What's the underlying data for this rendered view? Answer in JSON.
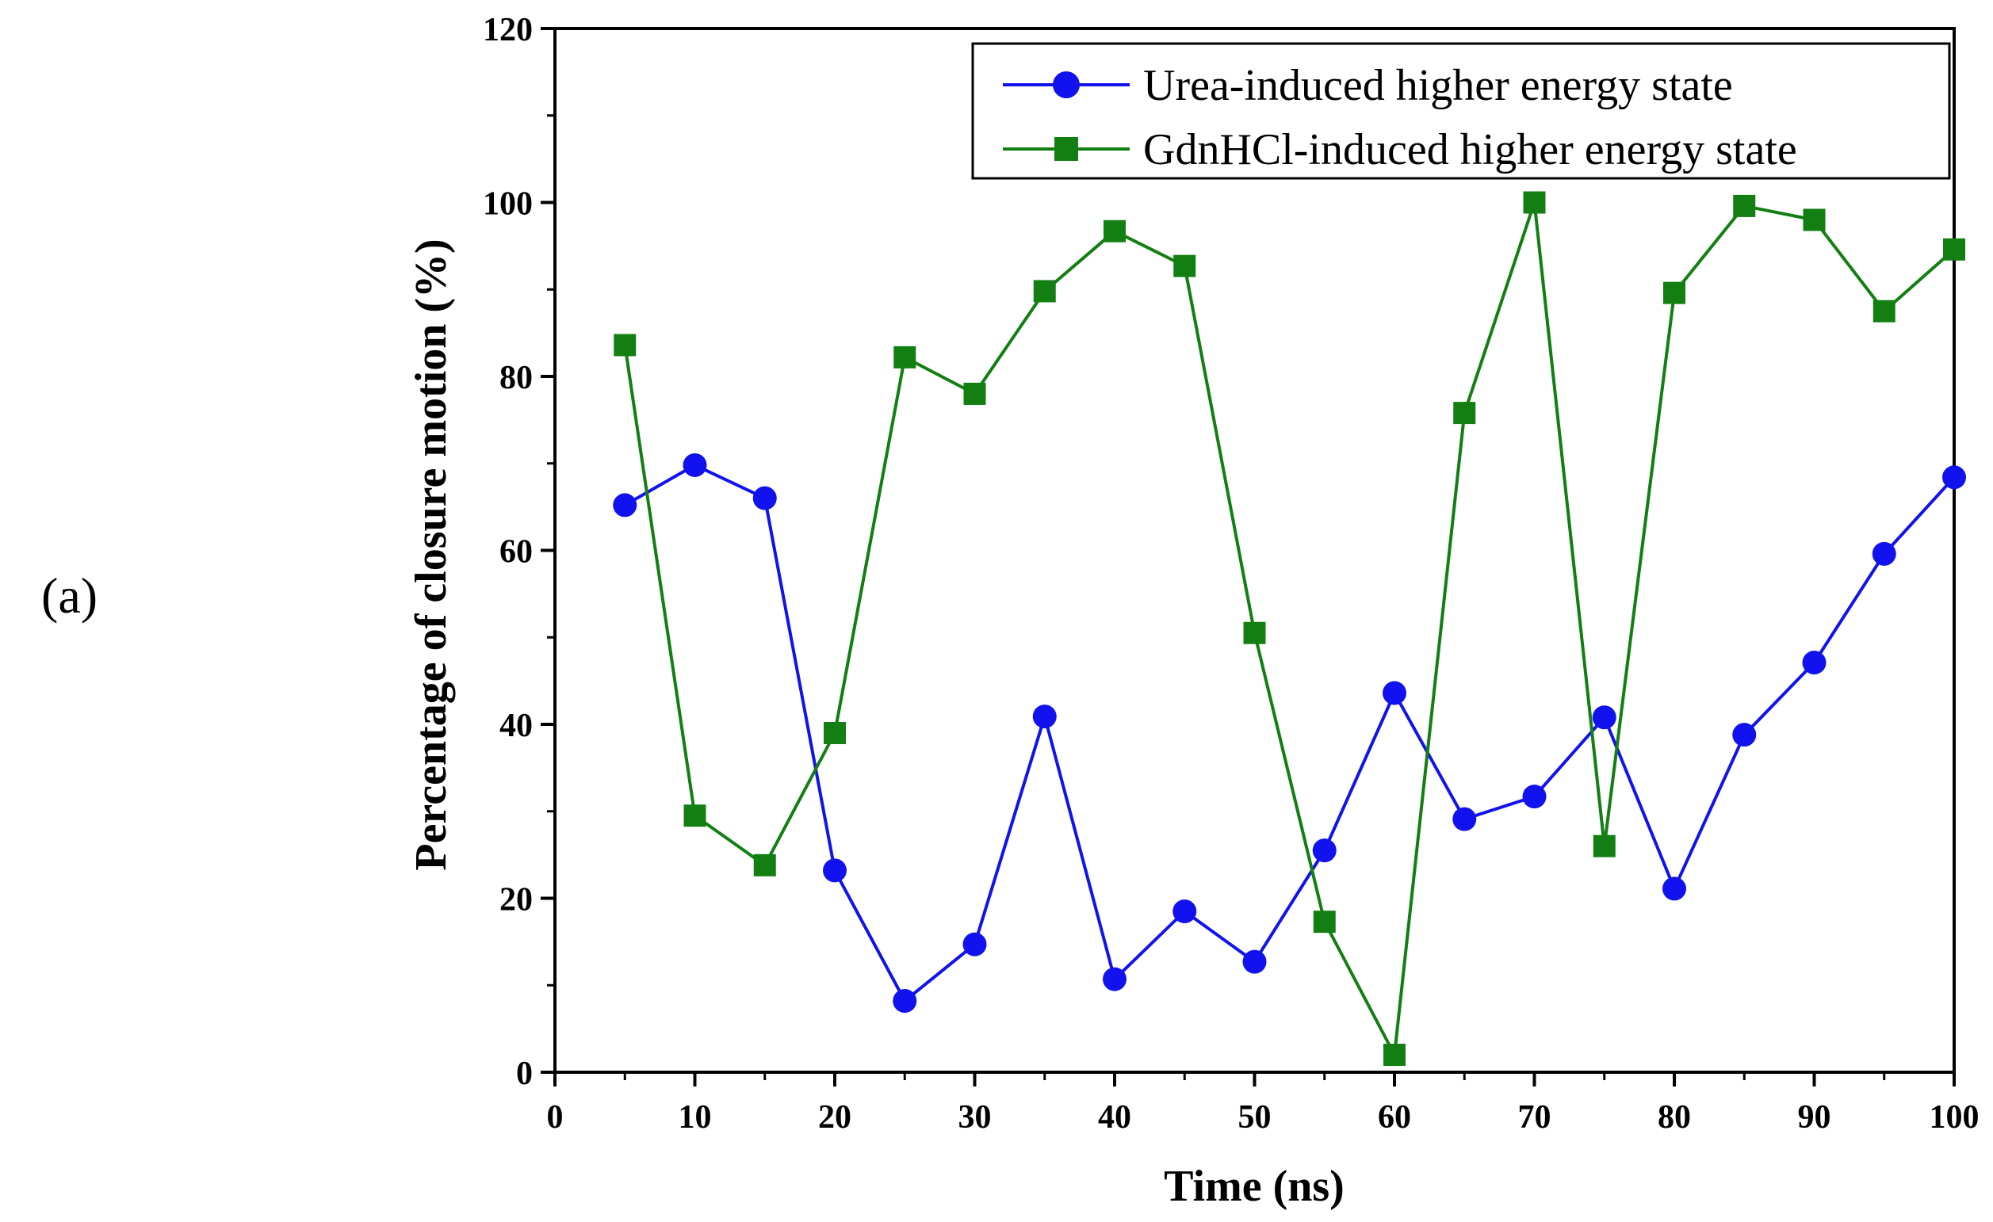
{
  "panel_label": "(a)",
  "colors": {
    "urea": "#1212ee",
    "gdnhcl": "#137f13",
    "axis": "#000000"
  },
  "chart_data": {
    "type": "line",
    "title": "",
    "xlabel": "Time (ns)",
    "ylabel": "Percentage of closure motion (%)",
    "xlim": [
      0,
      100
    ],
    "ylim": [
      0,
      120
    ],
    "xticks": [
      "0",
      "10",
      "20",
      "30",
      "40",
      "50",
      "60",
      "70",
      "80",
      "90",
      "100"
    ],
    "yticks": [
      "0",
      "20",
      "40",
      "60",
      "80",
      "100",
      "120"
    ],
    "grid": false,
    "legend_position": "top-right",
    "series": [
      {
        "name": "Urea-induced higher energy state",
        "marker": "circle",
        "color": "#1212ee",
        "x": [
          5,
          10,
          15,
          20,
          25,
          30,
          35,
          40,
          45,
          50,
          55,
          60,
          65,
          70,
          75,
          80,
          85,
          90,
          95,
          100
        ],
        "values": [
          65.2,
          69.8,
          66.0,
          23.2,
          8.2,
          14.7,
          40.9,
          10.7,
          18.5,
          12.7,
          25.5,
          43.6,
          29.1,
          31.7,
          40.8,
          21.1,
          38.8,
          47.1,
          59.6,
          68.4
        ]
      },
      {
        "name": "GdnHCl-induced higher energy state",
        "marker": "square",
        "color": "#137f13",
        "x": [
          5,
          10,
          15,
          20,
          25,
          30,
          35,
          40,
          45,
          50,
          55,
          60,
          65,
          70,
          75,
          80,
          85,
          90,
          95,
          100
        ],
        "values": [
          83.6,
          29.5,
          23.8,
          39.0,
          82.2,
          78.0,
          89.8,
          96.7,
          92.7,
          50.5,
          17.3,
          2.0,
          75.8,
          100.0,
          26.0,
          89.6,
          99.6,
          98.0,
          87.5,
          94.6
        ]
      }
    ]
  }
}
